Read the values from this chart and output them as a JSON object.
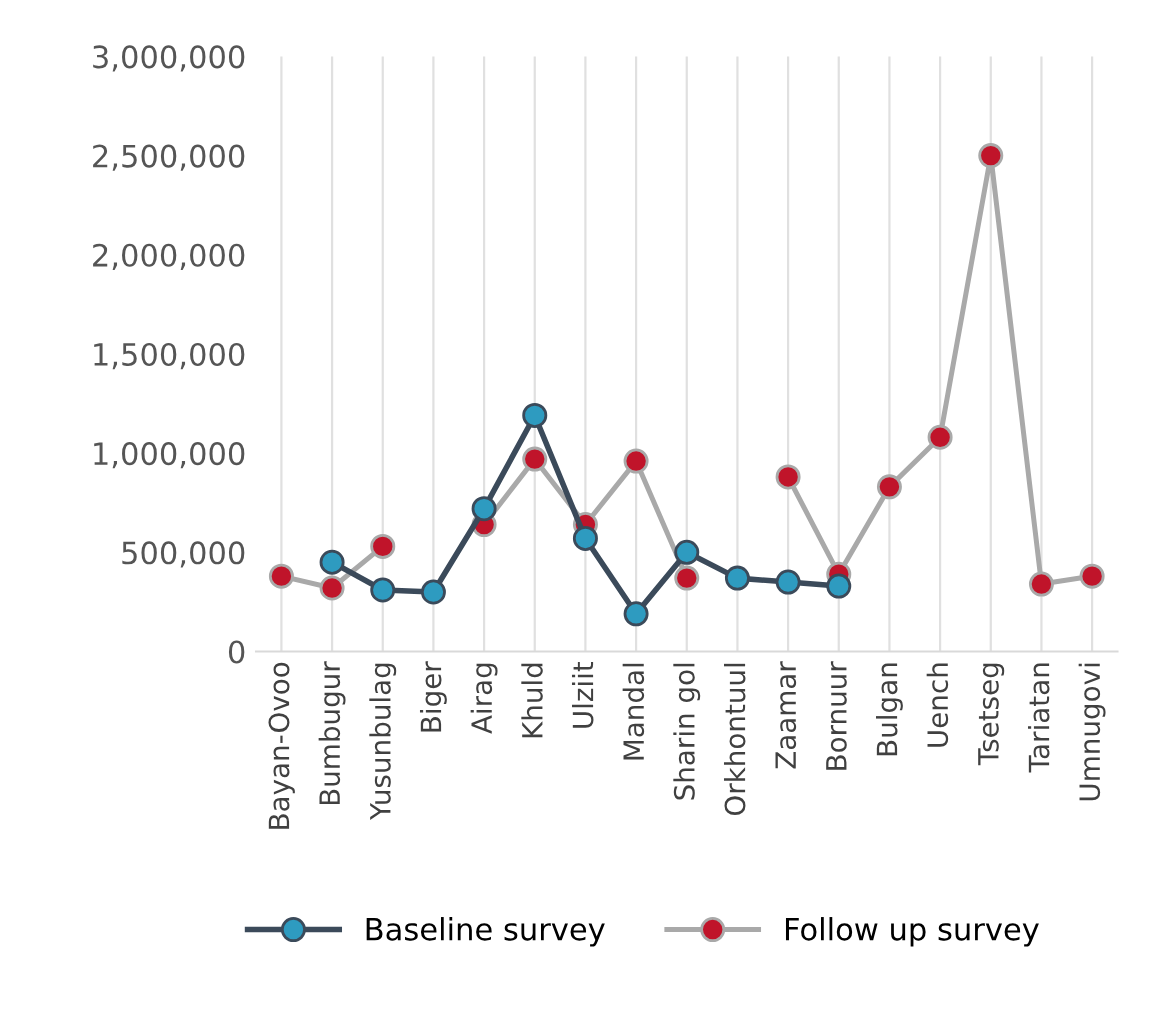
{
  "chart_data": {
    "type": "line",
    "categories": [
      "Bayan-Ovoo",
      "Bumbugur",
      "Yusunbulag",
      "Biger",
      "Airag",
      "Khuld",
      "Ulziit",
      "Mandal",
      "Sharin gol",
      "Orkhontuul",
      "Zaamar",
      "Bornuur",
      "Bulgan",
      "Uench",
      "Tsetseg",
      "Tariatan",
      "Umnugovi"
    ],
    "series": [
      {
        "name": "Baseline survey",
        "color": "#2e9bc0",
        "values": [
          null,
          450000,
          310000,
          300000,
          720000,
          1190000,
          570000,
          190000,
          500000,
          370000,
          350000,
          330000,
          null,
          null,
          null,
          null,
          null
        ]
      },
      {
        "name": "Follow up survey",
        "color": "#c0142a",
        "values": [
          380000,
          320000,
          530000,
          null,
          640000,
          970000,
          640000,
          960000,
          370000,
          null,
          880000,
          390000,
          830000,
          1080000,
          2500000,
          340000,
          380000
        ]
      }
    ],
    "ylim": [
      0,
      3000000
    ],
    "yticks": [
      {
        "value": 0,
        "label": "0"
      },
      {
        "value": 500000,
        "label": "500,000"
      },
      {
        "value": 1000000,
        "label": "1,000,000"
      },
      {
        "value": 1500000,
        "label": "1,500,000"
      },
      {
        "value": 2000000,
        "label": "2,000,000"
      },
      {
        "value": 2500000,
        "label": "2,500,000"
      },
      {
        "value": 3000000,
        "label": "3,000,000"
      }
    ],
    "grid": "x",
    "legend": "bottom",
    "marker": "circle",
    "line_style": "solid"
  }
}
